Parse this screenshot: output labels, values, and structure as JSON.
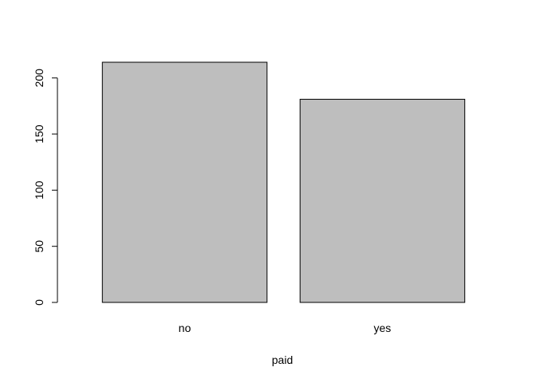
{
  "chart_data": {
    "type": "bar",
    "categories": [
      "no",
      "yes"
    ],
    "values": [
      214,
      181
    ],
    "title": "",
    "xlabel": "paid",
    "ylabel": "",
    "ylim": [
      0,
      214
    ],
    "yticks": [
      0,
      50,
      100,
      150,
      200
    ],
    "grid": false,
    "bar_color": "#bebebe",
    "bar_border_color": "#000000"
  }
}
